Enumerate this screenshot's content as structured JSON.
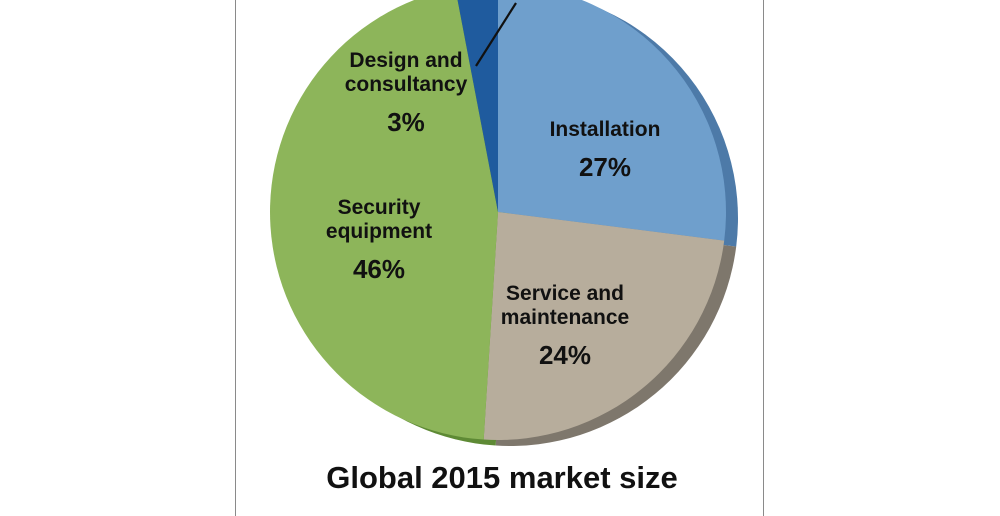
{
  "chart_data": {
    "type": "pie",
    "title": "Global 2015 market size",
    "subtitle": "",
    "slices": [
      {
        "label_lines": [
          "Installation"
        ],
        "percent_label": "27%",
        "value": 27,
        "color": "#6f9fcc",
        "shade": "#4d7aa8"
      },
      {
        "label_lines": [
          "Service and",
          "maintenance"
        ],
        "percent_label": "24%",
        "value": 24,
        "color": "#b7ad9c",
        "shade": "#7e776c"
      },
      {
        "label_lines": [
          "Security",
          "equipment"
        ],
        "percent_label": "46%",
        "value": 46,
        "color": "#8db55a",
        "shade": "#5e8a35"
      },
      {
        "label_lines": [
          "Design and",
          "consultancy"
        ],
        "percent_label": "3%",
        "value": 3,
        "color": "#1f5b9e",
        "shade": "#153f70"
      }
    ]
  }
}
